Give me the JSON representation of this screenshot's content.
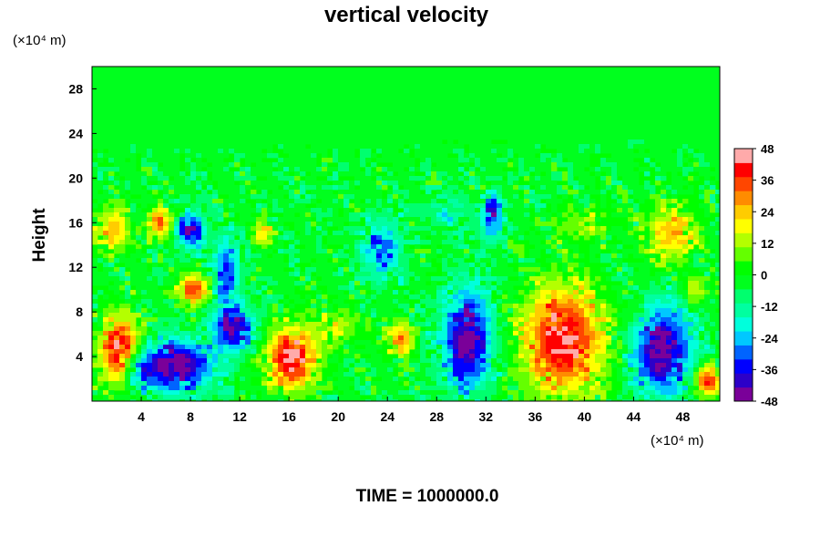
{
  "chart_data": {
    "type": "heatmap",
    "title": "vertical velocity",
    "ylabel": "Height",
    "x_unit": "(×10⁴ m)",
    "y_unit": "(×10⁴ m)",
    "footer": "TIME = 1000000.0",
    "xlim": [
      0,
      51
    ],
    "ylim": [
      0,
      30
    ],
    "x_ticks": [
      4,
      8,
      12,
      16,
      20,
      24,
      28,
      32,
      36,
      40,
      44,
      48
    ],
    "x_tick_labels": [
      "4",
      "8",
      "12",
      "16",
      "20",
      "24",
      "28",
      "32",
      "36",
      "40",
      "44",
      "48"
    ],
    "y_ticks": [
      4,
      8,
      12,
      16,
      20,
      24,
      28
    ],
    "y_tick_labels": [
      "4",
      "8",
      "12",
      "16",
      "20",
      "24",
      "28"
    ],
    "colorbar": {
      "min": -48,
      "max": 48,
      "ticks": [
        48,
        36,
        24,
        12,
        0,
        -12,
        -24,
        -36,
        -48
      ],
      "tick_labels": [
        "48",
        "36",
        "24",
        "12",
        "0",
        "-12",
        "-24",
        "-36",
        "-48"
      ],
      "colors": [
        "#7a0099",
        "#2d00c8",
        "#0000ff",
        "#0064ff",
        "#00c8ff",
        "#00ffdc",
        "#00ffa0",
        "#00ff6e",
        "#00ff1e",
        "#00ff00",
        "#64ff00",
        "#b4ff00",
        "#ffff00",
        "#ffcc00",
        "#ff8c00",
        "#ff4600",
        "#ff0000",
        "#ffaaaa"
      ]
    },
    "features": [
      {
        "x": 2.3,
        "y": 4.6,
        "rx": 1.9,
        "ry": 3.4,
        "value": 52
      },
      {
        "x": 6.8,
        "y": 3.2,
        "rx": 3.3,
        "ry": 2.6,
        "value": -50
      },
      {
        "x": 11.5,
        "y": 6.6,
        "rx": 1.8,
        "ry": 2.1,
        "value": -46
      },
      {
        "x": 10.9,
        "y": 11.5,
        "rx": 1.2,
        "ry": 3.3,
        "value": -34
      },
      {
        "x": 16.2,
        "y": 3.8,
        "rx": 2.2,
        "ry": 3.2,
        "value": 52
      },
      {
        "x": 25.1,
        "y": 5.5,
        "rx": 1.1,
        "ry": 1.8,
        "value": 36
      },
      {
        "x": 23.5,
        "y": 13.6,
        "rx": 1.8,
        "ry": 2.9,
        "value": -30
      },
      {
        "x": 30.5,
        "y": 5.5,
        "rx": 2.2,
        "ry": 5.0,
        "value": -50
      },
      {
        "x": 32.5,
        "y": 16.5,
        "rx": 1.0,
        "ry": 2.3,
        "value": -36
      },
      {
        "x": 38.3,
        "y": 5.5,
        "rx": 3.7,
        "ry": 5.4,
        "value": 52
      },
      {
        "x": 46.3,
        "y": 4.5,
        "rx": 2.6,
        "ry": 4.5,
        "value": -50
      },
      {
        "x": 50.0,
        "y": 1.8,
        "rx": 1.1,
        "ry": 1.5,
        "value": 48
      },
      {
        "x": 1.8,
        "y": 15.5,
        "rx": 1.7,
        "ry": 2.3,
        "value": 30
      },
      {
        "x": 5.5,
        "y": 16.0,
        "rx": 1.0,
        "ry": 1.5,
        "value": 40
      },
      {
        "x": 8.0,
        "y": 15.2,
        "rx": 1.2,
        "ry": 1.8,
        "value": -44
      },
      {
        "x": 8.2,
        "y": 10.0,
        "rx": 1.5,
        "ry": 1.5,
        "value": 42
      },
      {
        "x": 14.0,
        "y": 15.0,
        "rx": 1.0,
        "ry": 1.2,
        "value": 30
      },
      {
        "x": 47.0,
        "y": 15.0,
        "rx": 2.3,
        "ry": 3.0,
        "value": 28
      },
      {
        "x": 49.0,
        "y": 10.0,
        "rx": 1.2,
        "ry": 1.3,
        "value": 20
      },
      {
        "x": 40.0,
        "y": 16.0,
        "rx": 2.5,
        "ry": 2.0,
        "value": 12
      },
      {
        "x": 20.0,
        "y": 6.5,
        "rx": 2.2,
        "ry": 2.0,
        "value": 18
      },
      {
        "x": 29.0,
        "y": 17.0,
        "rx": 2.0,
        "ry": 1.8,
        "value": -14
      },
      {
        "x": 3.8,
        "y": 2.8,
        "rx": 1.3,
        "ry": 2.2,
        "value": -22
      }
    ]
  }
}
